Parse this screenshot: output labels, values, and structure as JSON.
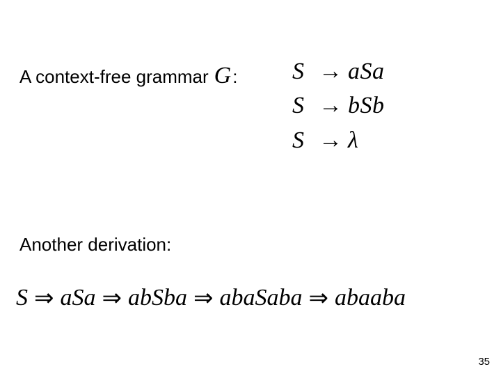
{
  "intro": {
    "text": "A context-free grammar",
    "symbol": "G",
    "colon": ":"
  },
  "rules": [
    {
      "lhs": "S",
      "arrow": "→",
      "rhs": "aSa"
    },
    {
      "lhs": "S",
      "arrow": "→",
      "rhs": "bSb"
    },
    {
      "lhs": "S",
      "arrow": "→",
      "rhs": "λ"
    }
  ],
  "another_label": "Another derivation:",
  "derivation": {
    "arrow": "⇒",
    "steps": [
      "S",
      "aSa",
      "abSba",
      "abaSaba",
      "abaaba"
    ]
  },
  "page_number": "35",
  "colors": {
    "background": "#ffffff",
    "text": "#000000"
  },
  "fonts": {
    "body": "Comic Sans MS",
    "math": "Times New Roman (italic)"
  }
}
